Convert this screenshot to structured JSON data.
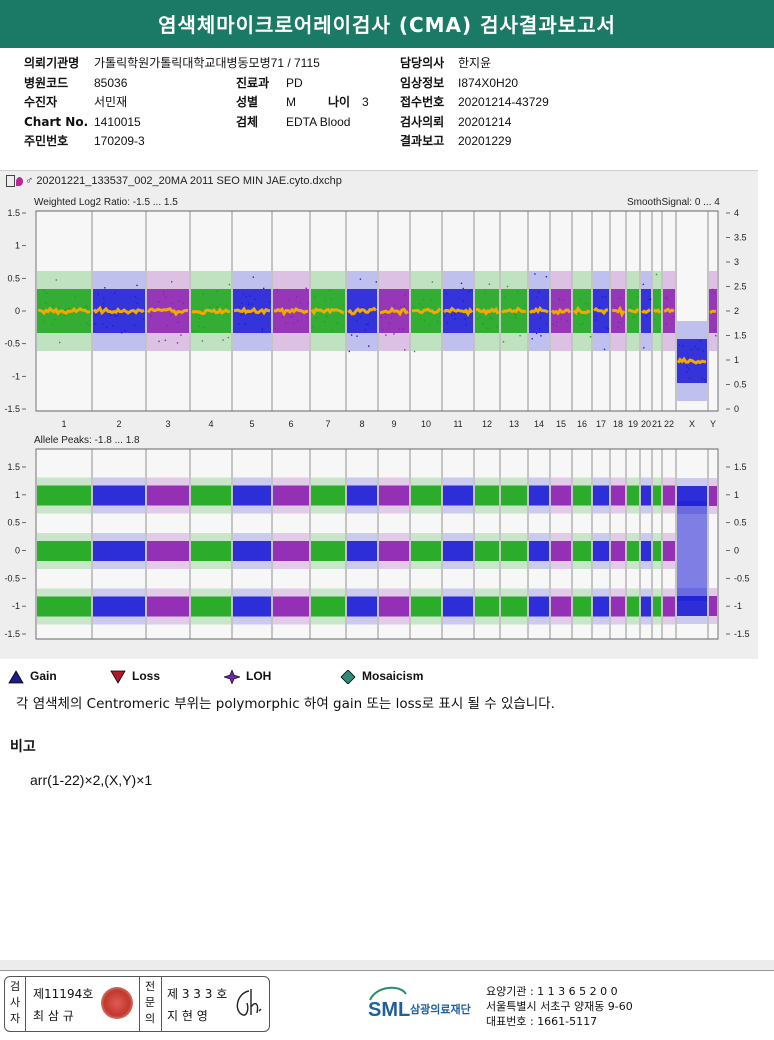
{
  "report": {
    "title": "염색체마이크로어레이검사 (CMA) 검사결과보고서"
  },
  "patient_info": {
    "left": [
      {
        "label": "의뢰기관명",
        "value": "가톨릭학원가톨릭대학교대병동모병71 / 7115"
      },
      {
        "label": "병원코드",
        "value": "85036"
      },
      {
        "label": "수진자",
        "value": "서민재"
      },
      {
        "label": "Chart No.",
        "value": "1410015"
      },
      {
        "label": "주민번호",
        "value": "170209-3"
      }
    ],
    "middle": [
      {
        "label": "진료과",
        "value": "PD"
      },
      {
        "label": "성별",
        "value": "M"
      },
      {
        "label": "검체",
        "value": "EDTA Blood"
      }
    ],
    "age": {
      "label": "나이",
      "value": "3"
    },
    "right": [
      {
        "label": "담당의사",
        "value": "한지윤"
      },
      {
        "label": "임상정보",
        "value": "I874X0H20"
      },
      {
        "label": "접수번호",
        "value": "20201214-43729"
      },
      {
        "label": "검사의뢰",
        "value": "20201214"
      },
      {
        "label": "결과보고",
        "value": "20201229"
      }
    ]
  },
  "plot": {
    "file_name": "20201221_133537_002_20MA 2011 SEO MIN JAE.cyto.dxchp",
    "top_title": "Weighted Log2 Ratio: -1.5 ... 1.5",
    "top_right_title": "SmoothSignal: 0 ... 4",
    "bottom_title": "Allele Peaks: -1.8 ... 1.8",
    "top_left_ticks": [
      "1.5",
      "1",
      "0.5",
      "0",
      "-0.5",
      "-1",
      "-1.5"
    ],
    "top_right_ticks": [
      "4",
      "3.5",
      "3",
      "2.5",
      "2",
      "1.5",
      "1",
      "0.5",
      "0"
    ],
    "bottom_left_ticks": [
      "1.5",
      "1",
      "0.5",
      "0",
      "-0.5",
      "-1",
      "-1.5"
    ],
    "bottom_right_ticks": [
      "1.5",
      "1",
      "0.5",
      "0",
      "-0.5",
      "-1",
      "-1.5"
    ],
    "chromosomes": [
      "1",
      "2",
      "3",
      "4",
      "5",
      "6",
      "7",
      "8",
      "9",
      "10",
      "11",
      "12",
      "13",
      "14",
      "15",
      "16",
      "17",
      "18",
      "19",
      "20",
      "21",
      "22",
      "X",
      "Y"
    ],
    "colors": {
      "green": "#1aa51a",
      "blue": "#1c1cd6",
      "purple": "#8a1fb0",
      "orange": "#f2a900"
    }
  },
  "legend": [
    {
      "icon": "gain-triangle-icon",
      "label": "Gain"
    },
    {
      "icon": "loss-triangle-icon",
      "label": "Loss"
    },
    {
      "icon": "loh-star-icon",
      "label": "LOH"
    },
    {
      "icon": "mosaicism-diamond-icon",
      "label": "Mosaicism"
    }
  ],
  "note": "각 염색체의 Centromeric 부위는 polymorphic 하여 gain 또는 loss로 표시 될 수 있습니다.",
  "remarks": {
    "heading": "비고",
    "karyotype": "arr(1-22)×2,(X,Y)×1"
  },
  "signatures": {
    "examiner_label": "검사자",
    "examiner_no": "제11194호",
    "examiner_name": "최 삼 규",
    "specialist_label": "전문의",
    "specialist_no": "제 3 3 3 호",
    "specialist_name": "지 현 영"
  },
  "organization": {
    "logo_text": "SML",
    "name": "삼광의료재단",
    "code_line": "요양기관 : 1 1 3 6 5 2 0 0",
    "address": "서울특별시 서초구 양재동 9-60",
    "phone": "대표번호 : 1661-5117"
  }
}
